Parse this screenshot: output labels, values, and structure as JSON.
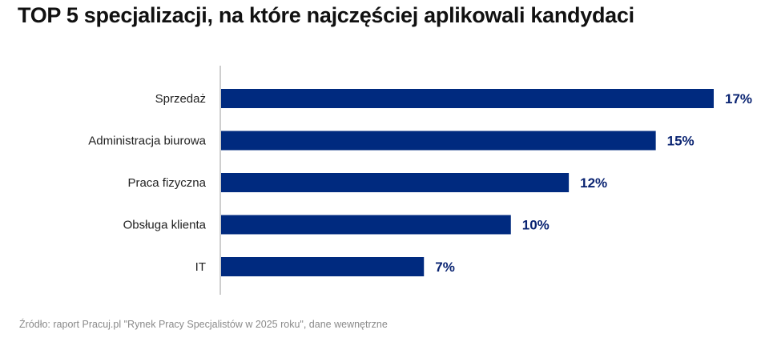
{
  "chart_data": {
    "type": "bar",
    "orientation": "horizontal",
    "title": "TOP 5 specjalizacji, na które najczęściej aplikowali kandydaci",
    "categories": [
      "Sprzedaż",
      "Administracja biurowa",
      "Praca fizyczna",
      "Obsługa klienta",
      "IT"
    ],
    "values": [
      17,
      15,
      12,
      10,
      7
    ],
    "data_labels": [
      "17%",
      "15%",
      "12%",
      "10%",
      "7%"
    ],
    "xlabel": "",
    "ylabel": "",
    "xlim": [
      0,
      17
    ],
    "grid": false,
    "bar_color": "#002a7f",
    "source": "Źródło: raport Pracuj.pl \"Rynek Pracy Specjalistów w 2025 roku\", dane wewnętrzne"
  }
}
